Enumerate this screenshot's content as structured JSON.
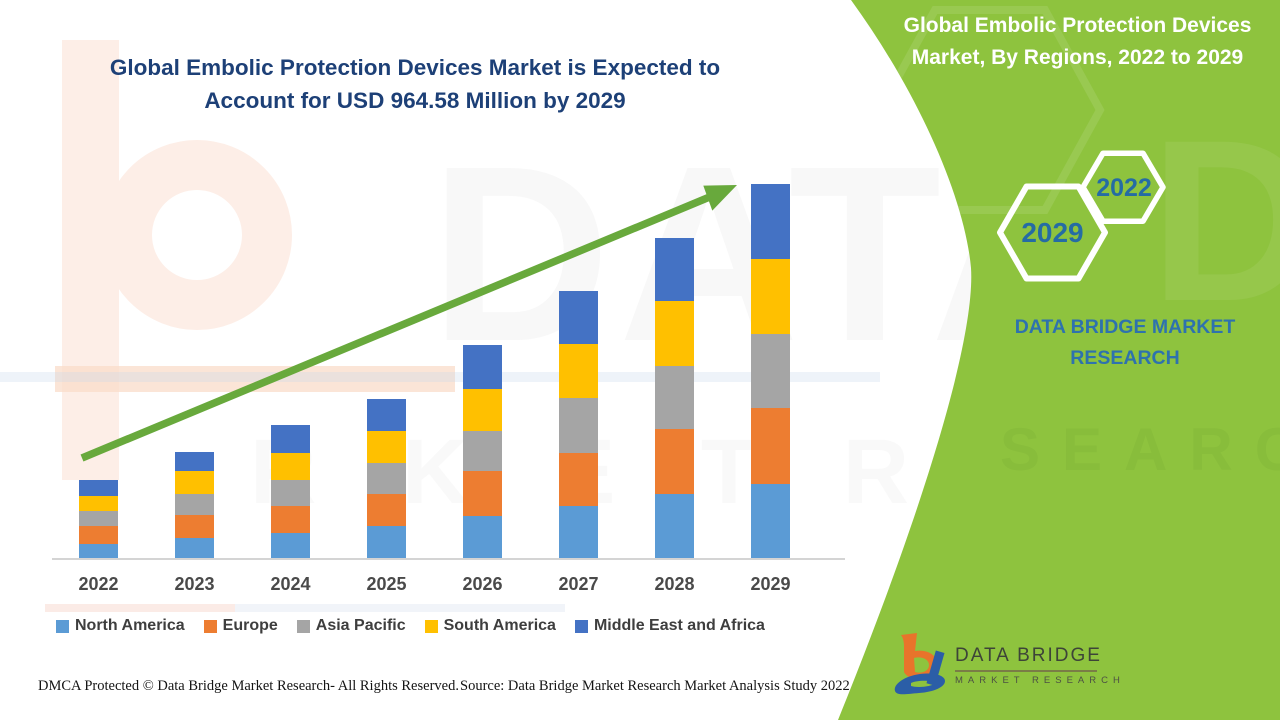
{
  "left_panel": {
    "title_line1": "Global Embolic Protection Devices Market is Expected to",
    "title_line2": "Account for USD 964.58 Million by 2029",
    "footer_left": "DMCA Protected © Data Bridge Market Research- All Rights Reserved.",
    "footer_right": "Source: Data Bridge Market Research Market Analysis Study 2022"
  },
  "right_panel": {
    "panel_color": "#8EC33E",
    "title_line1": "Global Embolic Protection Devices",
    "title_line2": "Market, By Regions, 2022 to 2029",
    "hexagon_large_label": "2029",
    "hexagon_small_label": "2022",
    "hexagon_text_color": "#256CA4",
    "brand_line1": "DATA BRIDGE MARKET",
    "brand_line2": "RESEARCH"
  },
  "logo": {
    "name": "DATA BRIDGE",
    "subtitle": "MARKET RESEARCH"
  },
  "watermark": {
    "big_text": "DATA BRI",
    "row_text": "R K E T  R E S"
  },
  "chart_data": {
    "type": "bar",
    "stacked": true,
    "title": "Global Embolic Protection Devices Market, By Regions, 2022 to 2029",
    "unit": "USD Million",
    "categories": [
      "2022",
      "2023",
      "2024",
      "2025",
      "2026",
      "2027",
      "2028",
      "2029"
    ],
    "series": [
      {
        "name": "North America",
        "color": "#5B9BD5",
        "values": [
          37,
          52,
          64,
          82,
          108,
          135,
          166,
          192
        ]
      },
      {
        "name": "Europe",
        "color": "#ED7D31",
        "values": [
          45,
          60,
          70,
          82,
          116,
          137,
          167,
          194
        ]
      },
      {
        "name": "Asia Pacific",
        "color": "#A5A5A5",
        "values": [
          39,
          52,
          67,
          82,
          103,
          142,
          161,
          193
        ]
      },
      {
        "name": "South America",
        "color": "#FFC000",
        "values": [
          40,
          60,
          71,
          81,
          110,
          138,
          168,
          192
        ]
      },
      {
        "name": "Middle East and Africa",
        "color": "#4472C4",
        "values": [
          41,
          50,
          72,
          84,
          113,
          137,
          164,
          193.58
        ]
      }
    ],
    "totals": [
      202,
      274,
      344,
      411,
      550,
      689,
      826,
      964.58
    ],
    "ylim": [
      0,
      980
    ],
    "grid": false,
    "legend_position": "bottom",
    "trend_arrow": true,
    "arrow_color": "#68A93C"
  }
}
